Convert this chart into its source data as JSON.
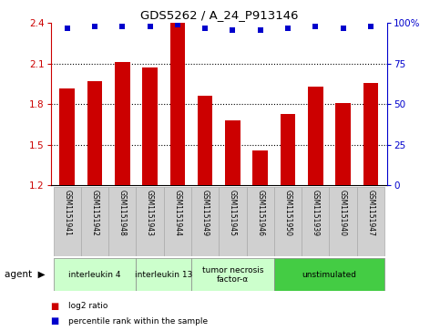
{
  "title": "GDS5262 / A_24_P913146",
  "samples": [
    "GSM1151941",
    "GSM1151942",
    "GSM1151948",
    "GSM1151943",
    "GSM1151944",
    "GSM1151949",
    "GSM1151945",
    "GSM1151946",
    "GSM1151950",
    "GSM1151939",
    "GSM1151940",
    "GSM1151947"
  ],
  "log2_values": [
    1.92,
    1.97,
    2.11,
    2.07,
    2.4,
    1.86,
    1.68,
    1.46,
    1.73,
    1.93,
    1.81,
    1.96
  ],
  "percentile_values": [
    97,
    98,
    98,
    98,
    99,
    97,
    96,
    96,
    97,
    98,
    97,
    98
  ],
  "ylim_left": [
    1.2,
    2.4
  ],
  "ylim_right": [
    0,
    100
  ],
  "yticks_left": [
    1.2,
    1.5,
    1.8,
    2.1,
    2.4
  ],
  "yticks_right": [
    0,
    25,
    50,
    75,
    100
  ],
  "bar_color": "#cc0000",
  "dot_color": "#0000cc",
  "groups": [
    {
      "label": "interleukin 4",
      "start": 0,
      "end": 2,
      "color": "#ccffcc"
    },
    {
      "label": "interleukin 13",
      "start": 3,
      "end": 4,
      "color": "#ccffcc"
    },
    {
      "label": "tumor necrosis\nfactor-α",
      "start": 5,
      "end": 7,
      "color": "#ccffcc"
    },
    {
      "label": "unstimulated",
      "start": 8,
      "end": 11,
      "color": "#44cc44"
    }
  ],
  "bar_bottom": 1.2,
  "grid_lines": [
    1.5,
    1.8,
    2.1
  ],
  "agent_label": "agent"
}
